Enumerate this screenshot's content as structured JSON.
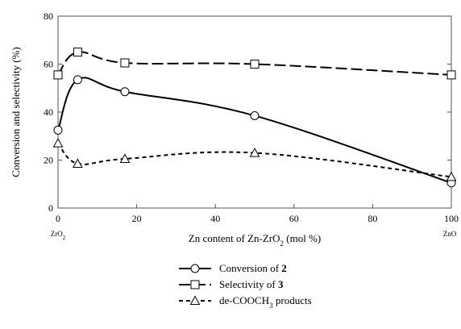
{
  "chart_data": {
    "type": "line",
    "xlabel": "Zn content of Zn-ZrO",
    "xlabel_sub": "2",
    "xlabel_suffix": " (mol %)",
    "ylabel": "Conversion and selectivity (%)",
    "xlim": [
      0,
      100
    ],
    "ylim": [
      0,
      80
    ],
    "x_ticks": [
      0,
      20,
      40,
      60,
      80,
      100
    ],
    "y_ticks": [
      0,
      20,
      40,
      60,
      80
    ],
    "x_end_labels": {
      "left": {
        "text": "ZrO",
        "sub": "2"
      },
      "right": {
        "text": "ZnO",
        "sub": ""
      }
    },
    "grid": false,
    "legend_position": "bottom-center",
    "series": [
      {
        "name": "Conversion of ",
        "name_bold": "2",
        "name_sub": "",
        "name_suffix": "",
        "marker": "circle",
        "line_style": "solid",
        "x": [
          0,
          5,
          17,
          50,
          100
        ],
        "values": [
          32.5,
          53.5,
          48.5,
          38.5,
          10.5
        ]
      },
      {
        "name": "Selectivity of ",
        "name_bold": "3",
        "name_sub": "",
        "name_suffix": "",
        "marker": "square",
        "line_style": "long-dash",
        "x": [
          0,
          5,
          17,
          50,
          100
        ],
        "values": [
          55.5,
          65,
          60.5,
          60,
          55.5
        ]
      },
      {
        "name": "de-COOCH",
        "name_bold": "",
        "name_sub": "3",
        "name_suffix": " products",
        "marker": "triangle",
        "line_style": "short-dash",
        "x": [
          0,
          5,
          17,
          50,
          100
        ],
        "values": [
          27,
          18.5,
          20.5,
          23,
          13
        ]
      }
    ]
  }
}
